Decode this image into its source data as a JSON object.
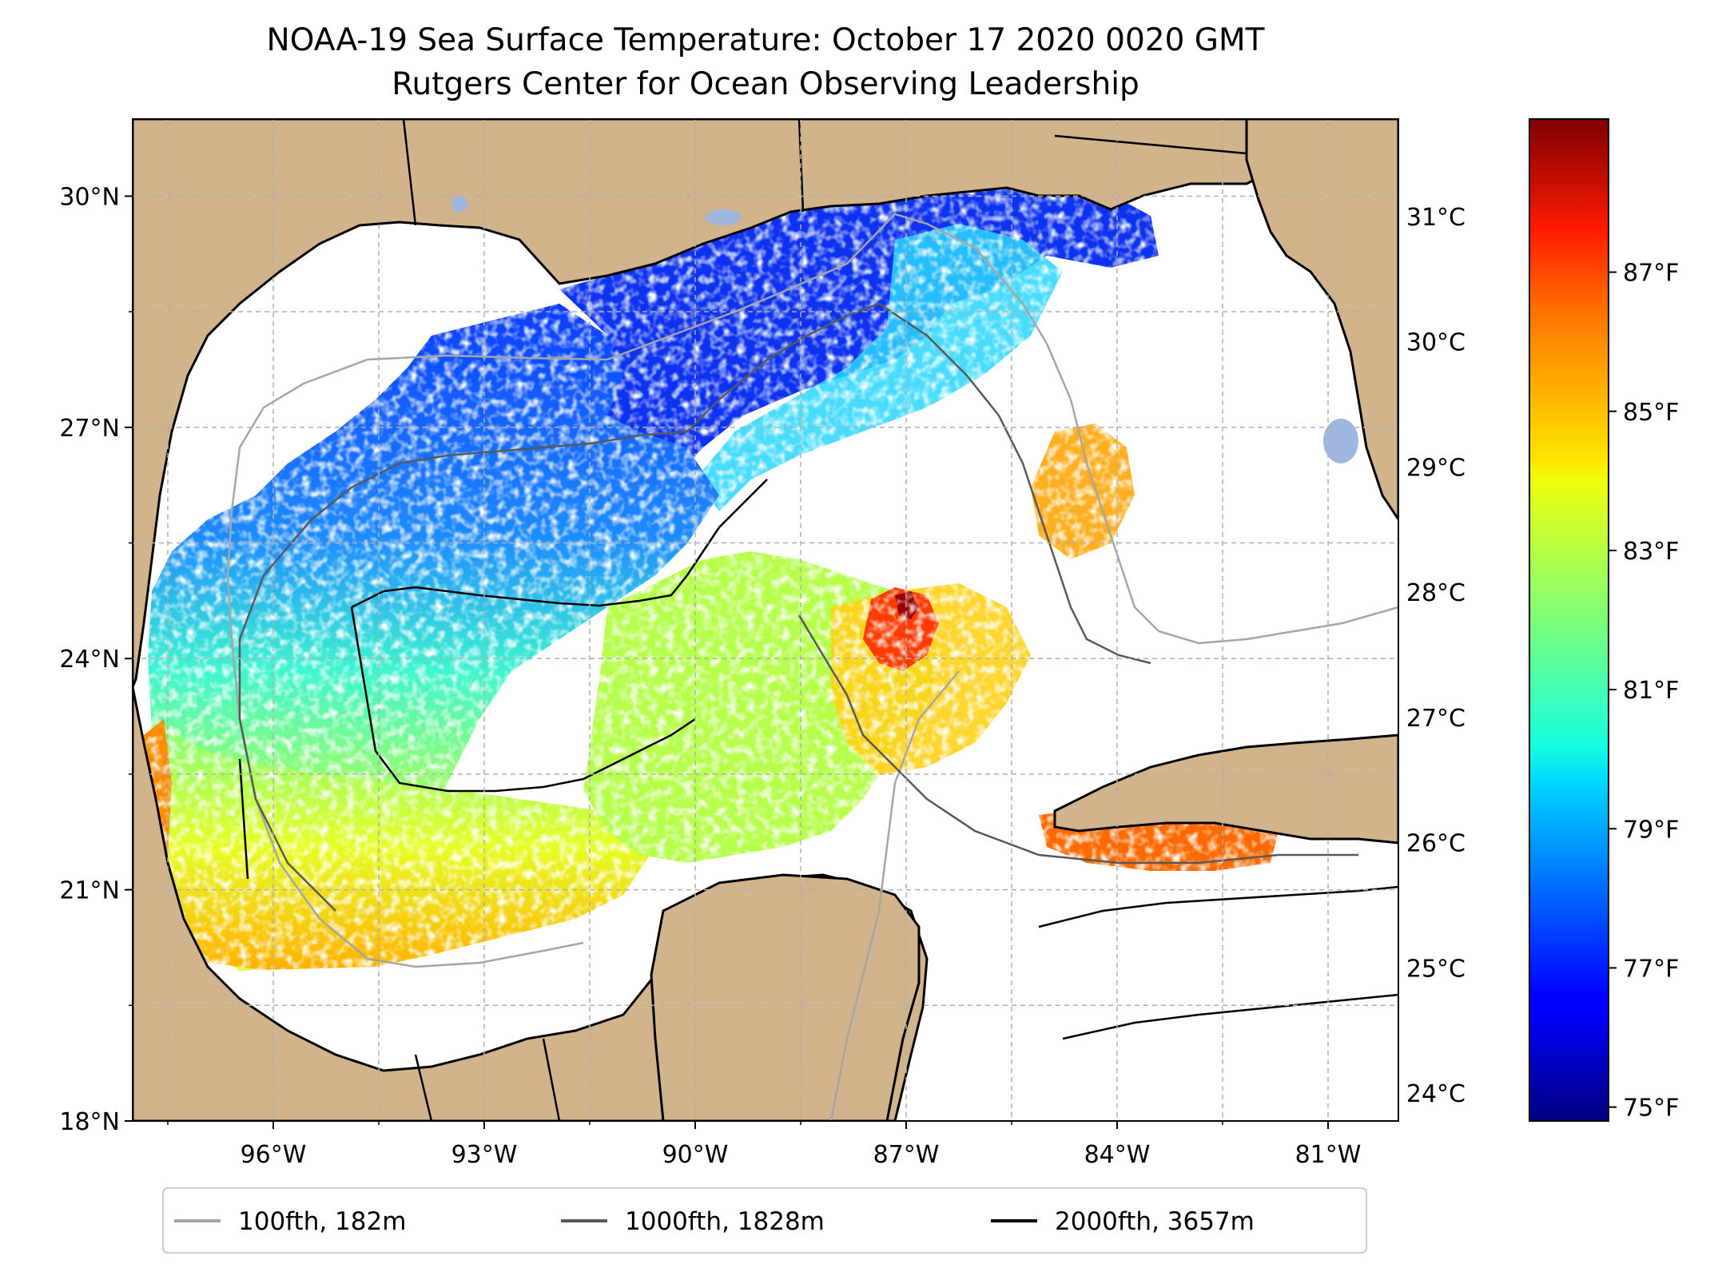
{
  "title": "NOAA-19 Sea Surface Temperature: October 17 2020 0020 GMT",
  "subtitle": "Rutgers Center for Ocean Observing Leadership",
  "map": {
    "lon_range": [
      -98,
      -80
    ],
    "lat_range": [
      18,
      31
    ],
    "lon_ticks": [
      {
        "value": -96,
        "label": "96°W"
      },
      {
        "value": -93,
        "label": "93°W"
      },
      {
        "value": -90,
        "label": "90°W"
      },
      {
        "value": -87,
        "label": "87°W"
      },
      {
        "value": -84,
        "label": "84°W"
      },
      {
        "value": -81,
        "label": "81°W"
      }
    ],
    "lat_ticks": [
      {
        "value": 18,
        "label": "18°N"
      },
      {
        "value": 21,
        "label": "21°N"
      },
      {
        "value": 24,
        "label": "24°N"
      },
      {
        "value": 27,
        "label": "27°N"
      },
      {
        "value": 30,
        "label": "30°N"
      }
    ],
    "colors": {
      "land": "#d2b48c",
      "lake": "#9fb6e0",
      "ocean": "#ffffff",
      "grid": "#b0b0b0"
    }
  },
  "colorbar": {
    "colormap": "jet",
    "fahrenheit_range": [
      74.8,
      89.2
    ],
    "celsius_ticks": [
      {
        "value": 24,
        "label": "24°C"
      },
      {
        "value": 25,
        "label": "25°C"
      },
      {
        "value": 26,
        "label": "26°C"
      },
      {
        "value": 27,
        "label": "27°C"
      },
      {
        "value": 28,
        "label": "28°C"
      },
      {
        "value": 29,
        "label": "29°C"
      },
      {
        "value": 30,
        "label": "30°C"
      },
      {
        "value": 31,
        "label": "31°C"
      }
    ],
    "fahrenheit_ticks": [
      {
        "value": 75,
        "label": "75°F"
      },
      {
        "value": 77,
        "label": "77°F"
      },
      {
        "value": 79,
        "label": "79°F"
      },
      {
        "value": 81,
        "label": "81°F"
      },
      {
        "value": 83,
        "label": "83°F"
      },
      {
        "value": 85,
        "label": "85°F"
      },
      {
        "value": 87,
        "label": "87°F"
      }
    ]
  },
  "legend": {
    "entries": [
      {
        "label": "100fth, 182m",
        "color": "#a6a6a6"
      },
      {
        "label": "1000fth, 1828m",
        "color": "#595959"
      },
      {
        "label": "2000fth, 3657m",
        "color": "#000000"
      }
    ]
  }
}
